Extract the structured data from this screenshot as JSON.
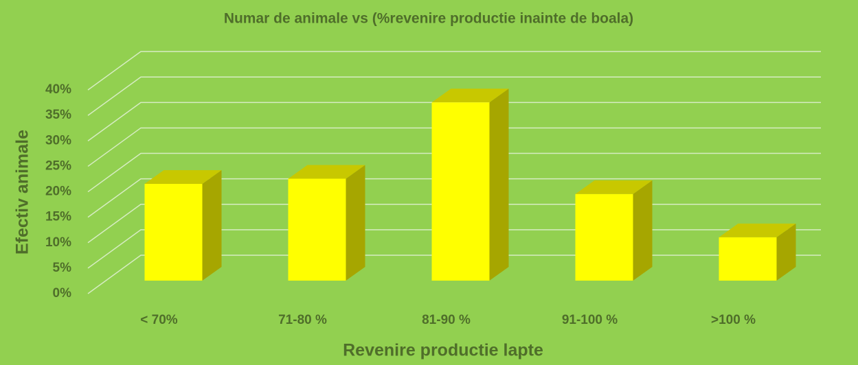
{
  "chart_data": {
    "type": "bar3d",
    "title": "Numar de animale vs (%revenire productie inainte de boala)",
    "x_label": "Revenire productie lapte",
    "y_label": "Efectiv animale",
    "categories": [
      "< 70%",
      "71-80 %",
      "81-90 %",
      "91-100 %",
      ">100 %"
    ],
    "values": [
      19,
      20,
      35,
      17,
      8.5
    ],
    "color": "#ffff00",
    "ylim": [
      0,
      45
    ],
    "yticks": [
      {
        "value": 0,
        "label": "0%"
      },
      {
        "value": 5,
        "label": "5%"
      },
      {
        "value": 10,
        "label": "10%"
      },
      {
        "value": 15,
        "label": "15%"
      },
      {
        "value": 20,
        "label": "20%"
      },
      {
        "value": 25,
        "label": "25%"
      },
      {
        "value": 30,
        "label": "30%"
      },
      {
        "value": 35,
        "label": "35%"
      },
      {
        "value": 40,
        "label": "40%"
      }
    ],
    "grid": true
  }
}
